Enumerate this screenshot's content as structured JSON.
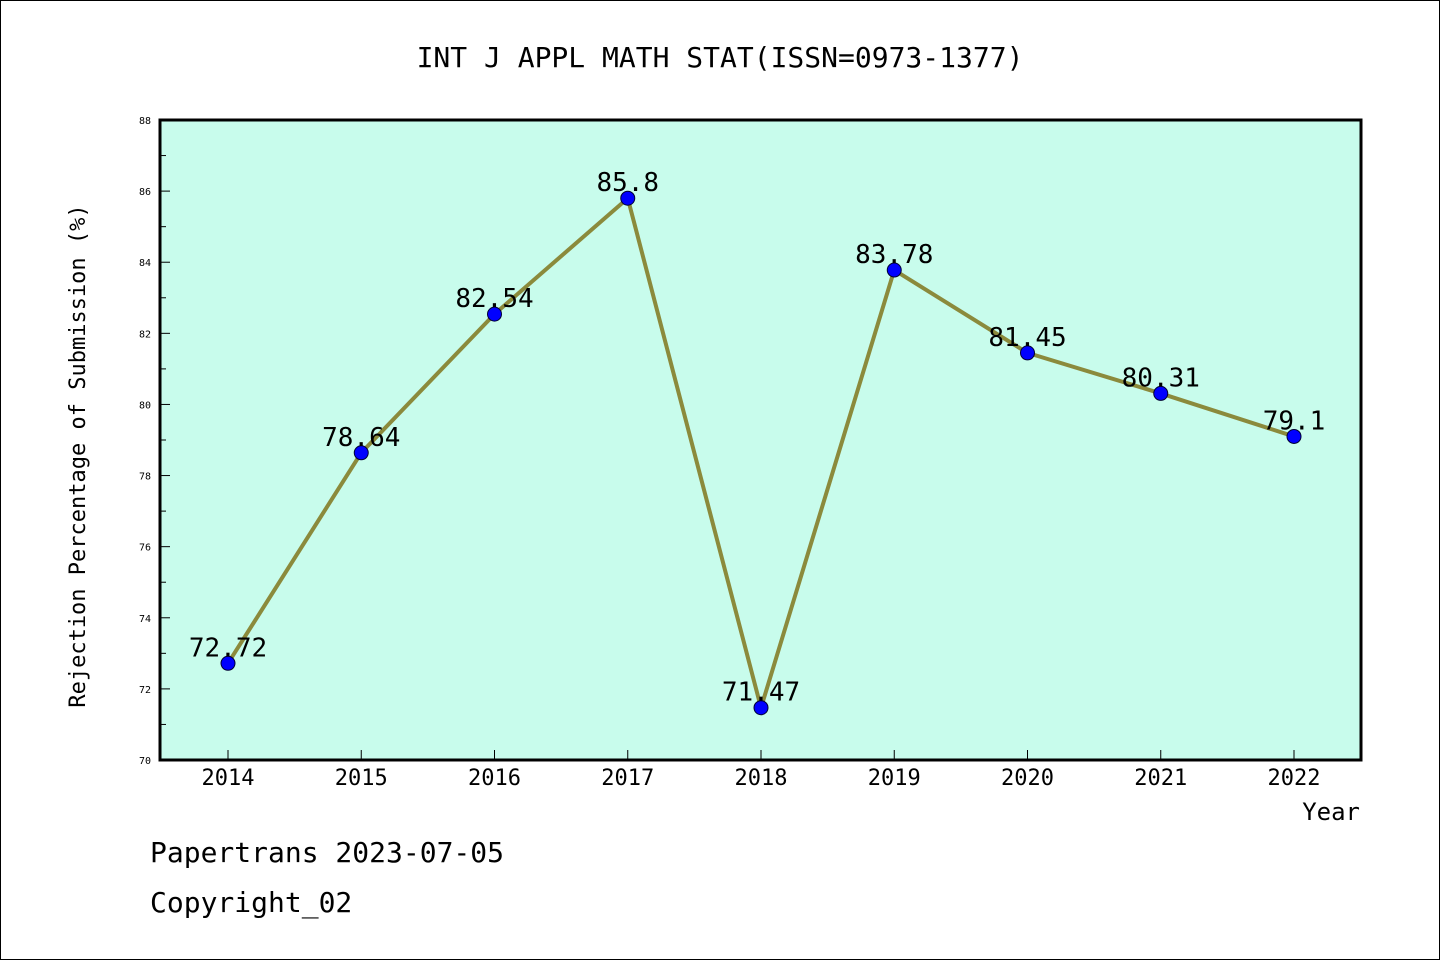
{
  "chart_data": {
    "type": "line",
    "title": "INT J APPL MATH STAT(ISSN=0973-1377)",
    "xlabel": "Year",
    "ylabel": "Rejection Percentage of Submission (%)",
    "categories": [
      "2014",
      "2015",
      "2016",
      "2017",
      "2018",
      "2019",
      "2020",
      "2021",
      "2022"
    ],
    "values": [
      72.72,
      78.64,
      82.54,
      85.8,
      71.47,
      83.78,
      81.45,
      80.31,
      79.1
    ],
    "data_labels": [
      "72.72",
      "78.64",
      "82.54",
      "85.8",
      "71.47",
      "83.78",
      "81.45",
      "80.31",
      "79.1"
    ],
    "ylim": [
      70,
      88
    ],
    "yticks": [
      "70",
      "72",
      "74",
      "76",
      "78",
      "80",
      "82",
      "84",
      "86",
      "88"
    ],
    "grid": false,
    "colors": {
      "background": "#c8fcec",
      "line": "#8b8a3c",
      "marker": "#0000ff"
    }
  },
  "footer": {
    "line1": "Papertrans 2023-07-05",
    "line2": "Copyright_02"
  }
}
